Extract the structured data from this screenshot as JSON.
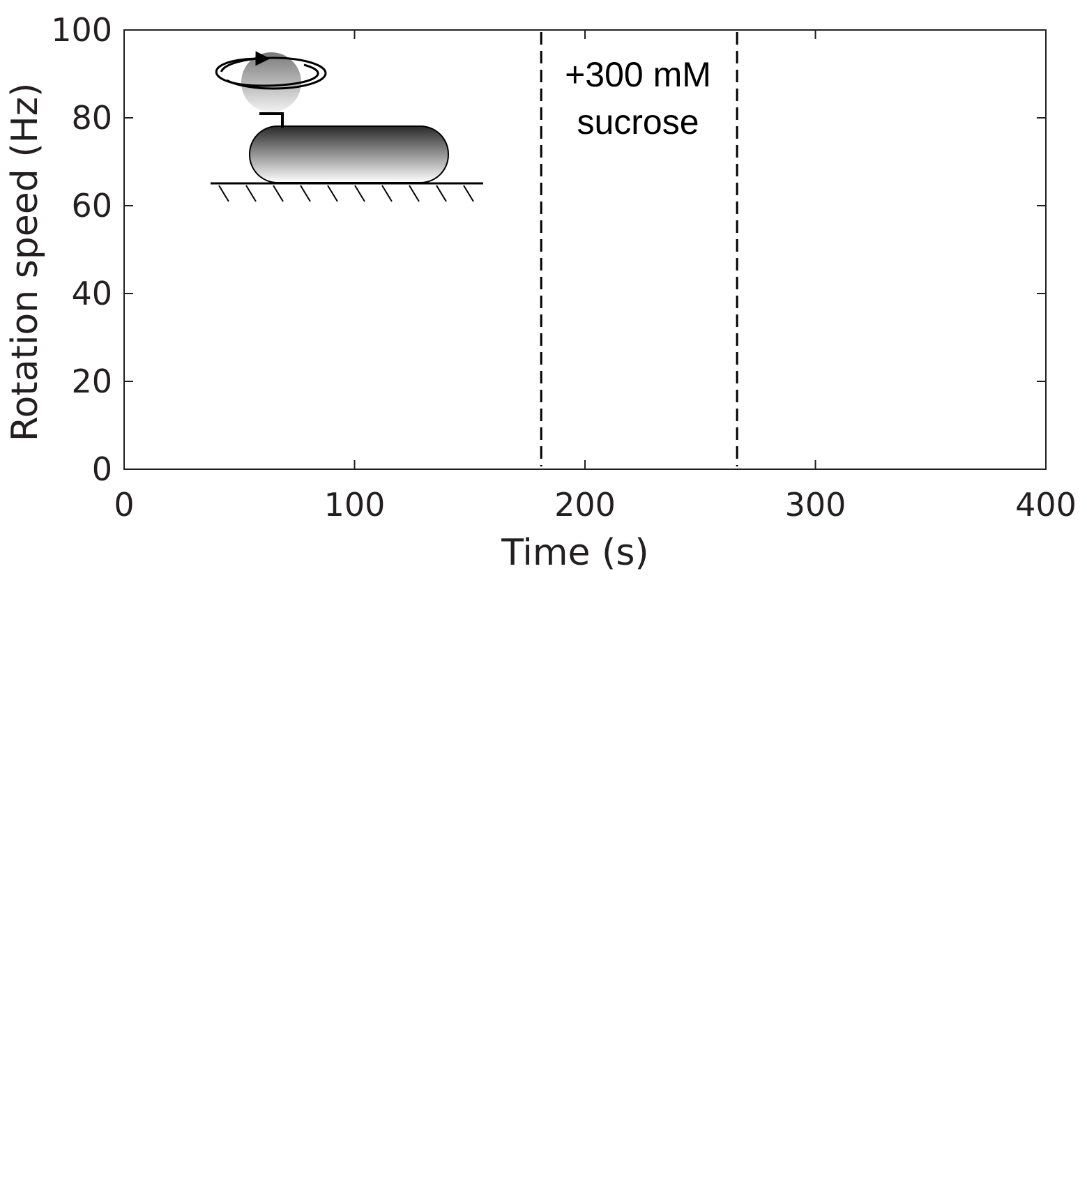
{
  "chart_data": {
    "type": "line",
    "xlabel": "Time (s)",
    "ylabel": "Rotation speed (Hz)",
    "xlim": [
      0,
      400
    ],
    "ylim": [
      0,
      100
    ],
    "xticks": [
      0,
      100,
      200,
      300,
      400
    ],
    "yticks": [
      0,
      20,
      40,
      60,
      80,
      100
    ],
    "series": [],
    "grid": false,
    "box": true,
    "vlines": [
      {
        "x": 181,
        "style": "dashed"
      },
      {
        "x": 266,
        "style": "dashed"
      }
    ],
    "annotation": {
      "x": 223,
      "lines": [
        "+300 mM",
        "sucrose"
      ]
    },
    "colors": {
      "axis": "#231f20",
      "text": "#231f20",
      "vline": "#000000"
    }
  }
}
